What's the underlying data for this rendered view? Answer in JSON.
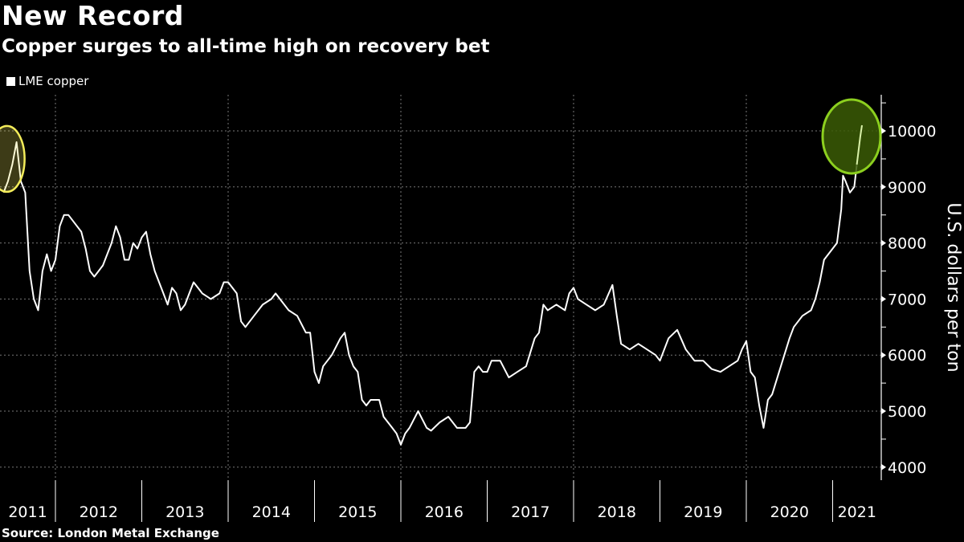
{
  "chart_data": {
    "type": "line",
    "title": "New Record",
    "subtitle": "Copper surges to all-time high on recovery bet",
    "legend": [
      "LME copper"
    ],
    "ylabel": "U.S. dollars per ton",
    "xlabel": "",
    "source": "Source: London Metal Exchange",
    "ylim": [
      3800,
      10600
    ],
    "yticks": [
      4000,
      5000,
      6000,
      7000,
      8000,
      9000,
      10000
    ],
    "xticks": [
      "2011",
      "2012",
      "2013",
      "2014",
      "2015",
      "2016",
      "2017",
      "2018",
      "2019",
      "2020",
      "2021"
    ],
    "colors": {
      "line": "#ffffff",
      "highlight_2011": "#f3ec5a",
      "highlight_2021_stroke": "#8ccf1f",
      "highlight_2021_fill": "#3b5c06"
    },
    "highlights": [
      {
        "label": "2011 peak",
        "t": 2011.55,
        "value": 9500
      },
      {
        "label": "2021 record",
        "t": 2021.3,
        "value": 9900
      }
    ],
    "series": [
      {
        "name": "LME copper",
        "points": [
          [
            2011.4,
            8900
          ],
          [
            2011.45,
            9100
          ],
          [
            2011.5,
            9400
          ],
          [
            2011.55,
            9800
          ],
          [
            2011.6,
            9100
          ],
          [
            2011.65,
            8900
          ],
          [
            2011.7,
            7500
          ],
          [
            2011.75,
            7000
          ],
          [
            2011.8,
            6800
          ],
          [
            2011.85,
            7500
          ],
          [
            2011.9,
            7800
          ],
          [
            2011.95,
            7500
          ],
          [
            2012.0,
            7700
          ],
          [
            2012.05,
            8300
          ],
          [
            2012.1,
            8500
          ],
          [
            2012.15,
            8500
          ],
          [
            2012.2,
            8400
          ],
          [
            2012.3,
            8200
          ],
          [
            2012.35,
            7900
          ],
          [
            2012.4,
            7500
          ],
          [
            2012.45,
            7400
          ],
          [
            2012.5,
            7500
          ],
          [
            2012.55,
            7600
          ],
          [
            2012.65,
            8000
          ],
          [
            2012.7,
            8300
          ],
          [
            2012.75,
            8100
          ],
          [
            2012.8,
            7700
          ],
          [
            2012.85,
            7700
          ],
          [
            2012.9,
            8000
          ],
          [
            2012.95,
            7900
          ],
          [
            2013.0,
            8100
          ],
          [
            2013.05,
            8200
          ],
          [
            2013.1,
            7800
          ],
          [
            2013.15,
            7500
          ],
          [
            2013.25,
            7100
          ],
          [
            2013.3,
            6900
          ],
          [
            2013.35,
            7200
          ],
          [
            2013.4,
            7100
          ],
          [
            2013.45,
            6800
          ],
          [
            2013.5,
            6900
          ],
          [
            2013.55,
            7100
          ],
          [
            2013.6,
            7300
          ],
          [
            2013.65,
            7200
          ],
          [
            2013.7,
            7100
          ],
          [
            2013.8,
            7000
          ],
          [
            2013.9,
            7100
          ],
          [
            2013.95,
            7300
          ],
          [
            2014.0,
            7300
          ],
          [
            2014.1,
            7100
          ],
          [
            2014.15,
            6600
          ],
          [
            2014.2,
            6500
          ],
          [
            2014.3,
            6700
          ],
          [
            2014.4,
            6900
          ],
          [
            2014.5,
            7000
          ],
          [
            2014.55,
            7100
          ],
          [
            2014.6,
            7000
          ],
          [
            2014.7,
            6800
          ],
          [
            2014.8,
            6700
          ],
          [
            2014.9,
            6400
          ],
          [
            2014.95,
            6400
          ],
          [
            2015.0,
            5700
          ],
          [
            2015.05,
            5500
          ],
          [
            2015.1,
            5800
          ],
          [
            2015.2,
            6000
          ],
          [
            2015.3,
            6300
          ],
          [
            2015.35,
            6400
          ],
          [
            2015.4,
            6000
          ],
          [
            2015.45,
            5800
          ],
          [
            2015.5,
            5700
          ],
          [
            2015.55,
            5200
          ],
          [
            2015.6,
            5100
          ],
          [
            2015.65,
            5200
          ],
          [
            2015.7,
            5200
          ],
          [
            2015.75,
            5200
          ],
          [
            2015.8,
            4900
          ],
          [
            2015.9,
            4700
          ],
          [
            2015.95,
            4600
          ],
          [
            2016.0,
            4400
          ],
          [
            2016.05,
            4600
          ],
          [
            2016.1,
            4700
          ],
          [
            2016.2,
            5000
          ],
          [
            2016.3,
            4700
          ],
          [
            2016.35,
            4650
          ],
          [
            2016.45,
            4800
          ],
          [
            2016.55,
            4900
          ],
          [
            2016.65,
            4700
          ],
          [
            2016.75,
            4700
          ],
          [
            2016.8,
            4800
          ],
          [
            2016.85,
            5700
          ],
          [
            2016.9,
            5800
          ],
          [
            2016.95,
            5700
          ],
          [
            2017.0,
            5700
          ],
          [
            2017.05,
            5900
          ],
          [
            2017.15,
            5900
          ],
          [
            2017.25,
            5600
          ],
          [
            2017.35,
            5700
          ],
          [
            2017.45,
            5800
          ],
          [
            2017.55,
            6300
          ],
          [
            2017.6,
            6400
          ],
          [
            2017.65,
            6900
          ],
          [
            2017.7,
            6800
          ],
          [
            2017.8,
            6900
          ],
          [
            2017.9,
            6800
          ],
          [
            2017.95,
            7100
          ],
          [
            2018.0,
            7200
          ],
          [
            2018.05,
            7000
          ],
          [
            2018.15,
            6900
          ],
          [
            2018.25,
            6800
          ],
          [
            2018.35,
            6900
          ],
          [
            2018.45,
            7250
          ],
          [
            2018.5,
            6700
          ],
          [
            2018.55,
            6200
          ],
          [
            2018.65,
            6100
          ],
          [
            2018.75,
            6200
          ],
          [
            2018.85,
            6100
          ],
          [
            2018.95,
            6000
          ],
          [
            2019.0,
            5900
          ],
          [
            2019.1,
            6300
          ],
          [
            2019.2,
            6450
          ],
          [
            2019.3,
            6100
          ],
          [
            2019.4,
            5900
          ],
          [
            2019.5,
            5900
          ],
          [
            2019.6,
            5750
          ],
          [
            2019.7,
            5700
          ],
          [
            2019.8,
            5800
          ],
          [
            2019.9,
            5900
          ],
          [
            2019.95,
            6100
          ],
          [
            2020.0,
            6250
          ],
          [
            2020.05,
            5700
          ],
          [
            2020.1,
            5600
          ],
          [
            2020.15,
            5100
          ],
          [
            2020.2,
            4700
          ],
          [
            2020.25,
            5200
          ],
          [
            2020.3,
            5300
          ],
          [
            2020.4,
            5800
          ],
          [
            2020.5,
            6300
          ],
          [
            2020.55,
            6500
          ],
          [
            2020.65,
            6700
          ],
          [
            2020.75,
            6800
          ],
          [
            2020.8,
            7000
          ],
          [
            2020.85,
            7300
          ],
          [
            2020.9,
            7700
          ],
          [
            2020.95,
            7800
          ],
          [
            2021.0,
            7900
          ],
          [
            2021.05,
            8000
          ],
          [
            2021.1,
            8600
          ],
          [
            2021.12,
            9200
          ],
          [
            2021.15,
            9100
          ],
          [
            2021.2,
            8900
          ],
          [
            2021.25,
            9000
          ],
          [
            2021.28,
            9400
          ],
          [
            2021.32,
            9900
          ],
          [
            2021.34,
            10100
          ]
        ]
      }
    ]
  }
}
